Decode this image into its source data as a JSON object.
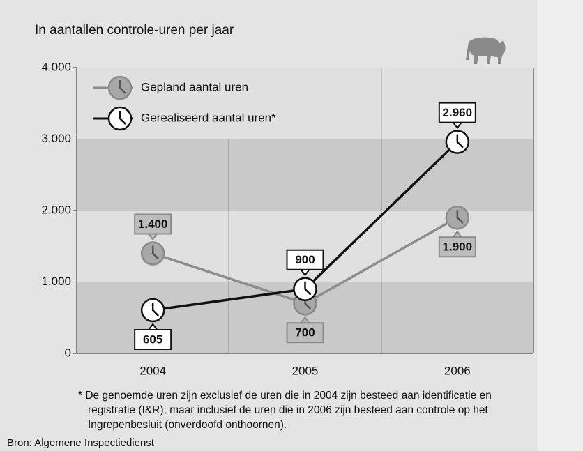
{
  "chart_data": {
    "type": "line",
    "title": "In aantallen controle-uren per jaar",
    "categories": [
      "2004",
      "2005",
      "2006"
    ],
    "series": [
      {
        "name": "Gepland aantal uren",
        "color": "#8c8c8c",
        "values": [
          1400,
          700,
          1900
        ],
        "value_labels": [
          "1.400",
          "700",
          "1.900"
        ]
      },
      {
        "name": "Gerealiseerd aantal uren*",
        "color": "#111111",
        "values": [
          605,
          900,
          2960
        ],
        "value_labels": [
          "605",
          "900",
          "2.960"
        ]
      }
    ],
    "ylim": [
      0,
      4000
    ],
    "yticks": [
      0,
      {
        "value": 1000,
        "label": "1.000"
      },
      {
        "value": 2000,
        "label": "2.000"
      },
      {
        "value": 3000,
        "label": "3.000"
      },
      {
        "value": 4000,
        "label": "4.000"
      }
    ],
    "footnote": [
      "* De genoemde uren zijn exclusief de uren die in 2004 zijn besteed aan identificatie en",
      "registratie (I&R), maar inclusief de uren die in 2006 zijn besteed aan controle op het",
      "Ingrepenbesluit (onverdoofd onthoornen)."
    ],
    "source": "Bron: Algemene Inspectiedienst"
  }
}
